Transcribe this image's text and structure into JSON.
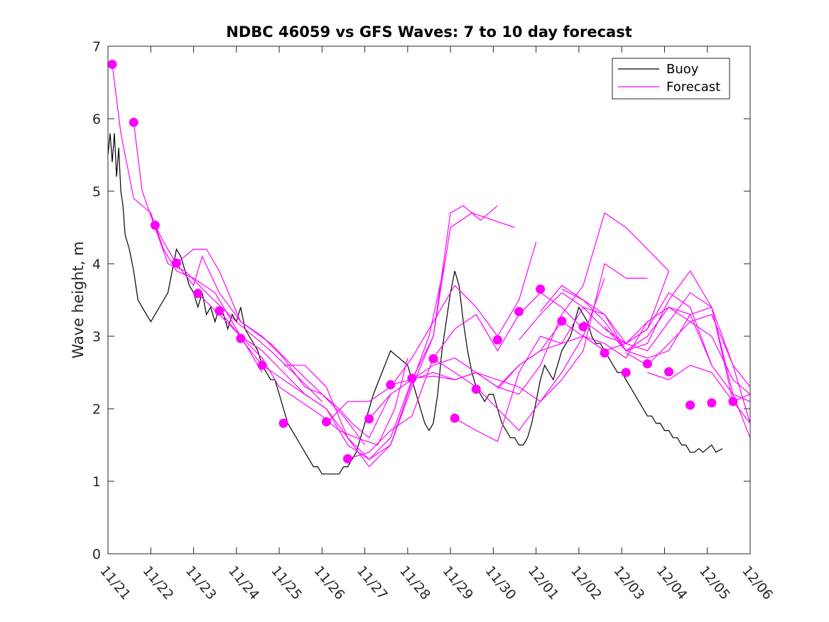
{
  "chart_data": {
    "type": "line",
    "title": "NDBC 46059 vs GFS Waves: 7 to 10 day forecast",
    "xlabel": "",
    "ylabel": "Wave height, m",
    "ylim": [
      0,
      7
    ],
    "yticks": [
      "0",
      "1",
      "2",
      "3",
      "4",
      "5",
      "6",
      "7"
    ],
    "xlim": [
      0,
      15
    ],
    "xticks": [
      "11/21",
      "11/22",
      "11/23",
      "11/24",
      "11/25",
      "11/26",
      "11/27",
      "11/28",
      "11/29",
      "11/30",
      "12/01",
      "12/02",
      "12/03",
      "12/04",
      "12/05",
      "12/06"
    ],
    "legend": {
      "position": "top-right",
      "entries": [
        "Buoy",
        "Forecast"
      ]
    },
    "colors": {
      "buoy": "#000000",
      "forecast": "#ff00ff",
      "axes": "#262626"
    },
    "buoy": {
      "name": "Buoy",
      "x": [
        0.0,
        0.05,
        0.1,
        0.15,
        0.2,
        0.25,
        0.3,
        0.35,
        0.4,
        0.5,
        0.6,
        0.7,
        0.8,
        0.9,
        1.0,
        1.1,
        1.2,
        1.3,
        1.4,
        1.5,
        1.6,
        1.7,
        1.8,
        1.9,
        2.0,
        2.1,
        2.2,
        2.3,
        2.4,
        2.5,
        2.6,
        2.7,
        2.8,
        2.9,
        3.0,
        3.1,
        3.2,
        3.3,
        3.4,
        3.5,
        3.6,
        3.7,
        3.8,
        3.9,
        4.0,
        4.1,
        4.2,
        4.3,
        4.4,
        4.5,
        4.6,
        4.7,
        4.8,
        4.9,
        5.0,
        5.1,
        5.2,
        5.3,
        5.4,
        5.5,
        5.6,
        5.7,
        5.8,
        5.9,
        6.0,
        6.2,
        6.4,
        6.6,
        6.8,
        7.0,
        7.1,
        7.2,
        7.3,
        7.4,
        7.5,
        7.6,
        7.7,
        7.8,
        7.9,
        8.0,
        8.1,
        8.2,
        8.3,
        8.4,
        8.5,
        8.6,
        8.7,
        8.8,
        8.9,
        9.0,
        9.1,
        9.2,
        9.3,
        9.4,
        9.5,
        9.6,
        9.7,
        9.8,
        9.9,
        10.0,
        10.1,
        10.2,
        10.3,
        10.4,
        10.5,
        10.6,
        10.7,
        10.8,
        10.9,
        11.0,
        11.1,
        11.2,
        11.3,
        11.4,
        11.5,
        11.6,
        11.7,
        11.8,
        11.9,
        12.0,
        12.1,
        12.2,
        12.3,
        12.4,
        12.5,
        12.6,
        12.7,
        12.8,
        12.9,
        13.0,
        13.1,
        13.2,
        13.3,
        13.4,
        13.5,
        13.6,
        13.7,
        13.8,
        13.9,
        14.0,
        14.1,
        14.2,
        14.35
      ],
      "y": [
        5.5,
        5.8,
        5.4,
        5.8,
        5.2,
        5.6,
        5.0,
        4.8,
        4.4,
        4.2,
        3.9,
        3.5,
        3.4,
        3.3,
        3.2,
        3.3,
        3.4,
        3.5,
        3.6,
        3.9,
        4.2,
        4.1,
        3.9,
        3.7,
        3.6,
        3.4,
        3.6,
        3.3,
        3.4,
        3.2,
        3.4,
        3.3,
        3.1,
        3.3,
        3.2,
        3.4,
        3.1,
        3.0,
        2.9,
        2.8,
        2.6,
        2.5,
        2.4,
        2.4,
        2.2,
        2.0,
        1.8,
        1.7,
        1.6,
        1.5,
        1.4,
        1.3,
        1.2,
        1.2,
        1.1,
        1.1,
        1.1,
        1.1,
        1.1,
        1.2,
        1.2,
        1.3,
        1.4,
        1.6,
        1.8,
        2.2,
        2.5,
        2.8,
        2.7,
        2.6,
        2.4,
        2.2,
        2.0,
        1.8,
        1.7,
        1.8,
        2.2,
        2.8,
        3.2,
        3.6,
        3.9,
        3.7,
        3.2,
        2.8,
        2.5,
        2.3,
        2.2,
        2.1,
        2.2,
        2.2,
        2.0,
        1.8,
        1.7,
        1.6,
        1.6,
        1.5,
        1.5,
        1.6,
        1.8,
        2.1,
        2.4,
        2.6,
        2.5,
        2.4,
        2.6,
        2.8,
        2.9,
        3.0,
        3.2,
        3.4,
        3.3,
        3.2,
        3.0,
        2.9,
        2.9,
        2.8,
        2.7,
        2.6,
        2.5,
        2.5,
        2.4,
        2.3,
        2.2,
        2.1,
        2.0,
        1.9,
        1.9,
        1.8,
        1.8,
        1.7,
        1.7,
        1.6,
        1.6,
        1.5,
        1.5,
        1.4,
        1.4,
        1.45,
        1.4,
        1.45,
        1.5,
        1.4,
        1.45
      ]
    },
    "forecast_points": {
      "name": "Forecast initial values",
      "x": [
        0.1,
        0.6,
        1.1,
        1.6,
        2.1,
        2.6,
        3.1,
        3.6,
        4.1,
        5.1,
        5.6,
        6.1,
        6.6,
        7.1,
        7.6,
        8.1,
        8.6,
        9.1,
        9.6,
        10.1,
        10.6,
        11.1,
        11.6,
        12.1,
        12.6,
        13.1,
        13.6,
        14.1,
        14.6
      ],
      "y": [
        6.75,
        5.95,
        4.53,
        4.01,
        3.59,
        3.35,
        2.97,
        2.6,
        1.8,
        1.82,
        1.31,
        1.86,
        2.33,
        2.42,
        2.69,
        1.87,
        2.27,
        2.95,
        3.34,
        3.65,
        3.21,
        3.13,
        2.77,
        2.5,
        2.62,
        2.51,
        2.05,
        2.08,
        2.1
      ]
    },
    "forecast_series": [
      {
        "x": [
          0.1,
          0.3,
          0.6,
          1.0,
          1.3,
          1.6,
          2.0,
          2.5,
          3.0,
          3.6
        ],
        "y": [
          6.75,
          5.8,
          4.9,
          4.7,
          4.2,
          3.9,
          3.8,
          3.6,
          3.1,
          2.5
        ]
      },
      {
        "x": [
          0.6,
          0.8,
          1.1,
          1.4,
          1.8,
          2.3,
          3.0,
          3.8,
          4.5,
          5.0
        ],
        "y": [
          5.95,
          5.0,
          4.5,
          4.0,
          3.9,
          3.6,
          3.2,
          2.8,
          2.4,
          2.1
        ]
      },
      {
        "x": [
          1.1,
          1.3,
          1.6,
          2.0,
          2.2,
          2.6,
          3.1,
          3.8,
          4.3,
          5.0,
          5.5,
          6.0
        ],
        "y": [
          4.53,
          4.3,
          4.0,
          3.7,
          4.1,
          3.6,
          3.2,
          2.9,
          2.6,
          2.2,
          1.9,
          1.5
        ]
      },
      {
        "x": [
          1.6,
          2.0,
          2.3,
          2.6,
          3.1,
          3.6,
          4.1,
          4.6,
          5.0,
          5.4,
          5.7,
          6.1,
          6.6
        ],
        "y": [
          4.01,
          4.2,
          4.2,
          3.9,
          3.2,
          3.0,
          2.7,
          2.3,
          2.2,
          2.0,
          1.8,
          1.6,
          2.2
        ]
      },
      {
        "x": [
          2.1,
          2.6,
          3.1,
          3.6,
          4.0,
          4.5,
          5.0,
          5.4,
          5.8,
          6.3,
          6.7,
          7.0
        ],
        "y": [
          3.59,
          3.3,
          3.0,
          2.7,
          2.3,
          2.1,
          1.9,
          1.7,
          1.6,
          1.5,
          2.0,
          2.7
        ]
      },
      {
        "x": [
          2.6,
          3.1,
          3.6,
          4.1,
          4.6,
          5.1,
          5.6,
          6.1,
          6.6,
          7.0,
          7.5,
          7.9
        ],
        "y": [
          3.35,
          3.0,
          2.8,
          2.5,
          2.2,
          2.0,
          1.6,
          1.3,
          1.5,
          2.2,
          3.0,
          4.1
        ]
      },
      {
        "x": [
          3.1,
          3.6,
          4.1,
          4.6,
          5.1,
          5.6,
          6.1,
          6.6,
          7.1,
          7.6,
          8.0,
          8.3,
          8.7,
          9.1
        ],
        "y": [
          2.97,
          2.6,
          2.4,
          2.2,
          2.0,
          1.5,
          1.3,
          1.6,
          2.4,
          3.0,
          4.7,
          4.8,
          4.6,
          4.8
        ]
      },
      {
        "x": [
          4.1,
          4.6,
          5.1,
          5.6,
          6.1,
          6.6,
          7.1,
          7.6,
          8.0,
          8.5,
          9.0,
          9.5
        ],
        "y": [
          2.6,
          2.6,
          2.3,
          1.6,
          1.2,
          1.5,
          2.3,
          3.0,
          4.5,
          4.7,
          4.6,
          4.5
        ]
      },
      {
        "x": [
          5.1,
          5.6,
          6.1,
          6.6,
          7.1,
          7.6,
          8.1,
          8.6,
          9.1,
          9.6,
          10.0
        ],
        "y": [
          1.8,
          2.1,
          2.1,
          2.3,
          2.7,
          3.2,
          3.7,
          3.4,
          3.0,
          3.5,
          4.3
        ]
      },
      {
        "x": [
          5.6,
          6.1,
          6.6,
          7.1,
          7.6,
          8.1,
          8.6,
          9.1,
          9.6,
          10.1,
          10.6,
          11.1
        ],
        "y": [
          1.31,
          1.4,
          1.7,
          1.9,
          2.7,
          3.1,
          3.3,
          2.8,
          3.3,
          3.6,
          3.4,
          3.1
        ]
      },
      {
        "x": [
          6.1,
          6.6,
          7.1,
          7.6,
          8.1,
          8.6,
          9.1,
          9.6,
          10.1,
          10.6,
          11.1,
          11.6
        ],
        "y": [
          1.86,
          2.2,
          2.4,
          2.5,
          2.4,
          2.5,
          2.3,
          2.6,
          2.8,
          2.9,
          3.0,
          3.8
        ]
      },
      {
        "x": [
          6.6,
          7.1,
          7.6,
          8.1,
          8.6,
          9.1,
          9.6,
          10.1,
          10.6,
          11.1,
          11.6,
          12.1,
          12.6,
          13.1
        ],
        "y": [
          2.33,
          2.4,
          2.6,
          2.7,
          2.5,
          2.3,
          2.2,
          2.6,
          3.3,
          3.7,
          4.7,
          4.5,
          4.2,
          3.9
        ]
      },
      {
        "x": [
          7.1,
          7.6,
          8.1,
          8.6,
          9.1,
          9.6,
          10.1,
          10.6,
          11.1,
          11.6,
          12.1,
          12.6
        ],
        "y": [
          2.42,
          2.45,
          2.4,
          2.5,
          2.4,
          2.3,
          2.1,
          2.4,
          2.8,
          4.0,
          3.8,
          3.8
        ]
      },
      {
        "x": [
          7.6,
          8.1,
          8.6,
          9.1,
          9.6,
          10.1,
          10.6,
          11.1,
          11.6,
          12.1,
          12.6
        ],
        "y": [
          2.69,
          2.5,
          2.3,
          2.0,
          1.7,
          2.1,
          2.5,
          3.0,
          2.8,
          2.9,
          3.2
        ]
      },
      {
        "x": [
          8.1,
          8.6,
          9.1,
          9.6,
          10.1,
          10.6,
          11.1,
          11.6,
          12.1,
          12.6,
          13.1
        ],
        "y": [
          1.87,
          1.7,
          1.55,
          2.5,
          3.0,
          2.9,
          3.4,
          3.3,
          2.9,
          3.1,
          3.9
        ]
      },
      {
        "x": [
          9.1,
          9.6,
          10.1,
          10.6,
          11.1,
          11.6,
          12.1,
          12.6,
          13.1,
          13.6,
          14.1
        ],
        "y": [
          2.27,
          2.6,
          2.8,
          3.2,
          3.0,
          2.9,
          2.7,
          3.2,
          3.4,
          3.3,
          2.6
        ]
      },
      {
        "x": [
          9.6,
          10.1,
          10.6,
          11.1,
          11.6,
          12.1,
          12.6,
          13.1,
          13.6,
          14.1,
          14.6,
          15.0
        ],
        "y": [
          2.95,
          3.3,
          3.6,
          3.4,
          3.1,
          2.9,
          3.1,
          3.6,
          3.4,
          2.6,
          2.2,
          2.1
        ]
      },
      {
        "x": [
          10.1,
          10.6,
          11.1,
          11.6,
          12.1,
          12.6,
          13.1,
          13.6,
          14.1,
          14.6,
          15.0
        ],
        "y": [
          3.34,
          3.7,
          3.5,
          3.2,
          2.8,
          3.0,
          3.4,
          3.2,
          3.3,
          2.6,
          2.3
        ]
      },
      {
        "x": [
          10.6,
          11.1,
          11.6,
          12.1,
          12.6,
          13.1,
          13.6,
          14.1,
          14.6,
          15.0
        ],
        "y": [
          3.65,
          3.5,
          3.3,
          2.8,
          2.9,
          3.5,
          3.9,
          3.4,
          2.6,
          1.8
        ]
      },
      {
        "x": [
          11.1,
          11.6,
          12.1,
          12.6,
          13.1,
          13.6,
          14.1,
          14.6,
          15.0
        ],
        "y": [
          3.21,
          3.0,
          2.9,
          2.8,
          3.2,
          3.6,
          3.4,
          2.2,
          1.6
        ]
      },
      {
        "x": [
          11.6,
          12.1,
          12.6,
          13.1,
          13.6,
          14.1,
          14.6,
          15.0
        ],
        "y": [
          3.13,
          2.8,
          2.7,
          2.8,
          3.3,
          3.4,
          2.1,
          1.8
        ]
      },
      {
        "x": [
          12.1,
          12.6,
          13.1,
          13.6,
          14.1,
          14.6,
          15.0
        ],
        "y": [
          2.77,
          2.6,
          2.9,
          3.2,
          3.0,
          2.4,
          2.2
        ]
      },
      {
        "x": [
          12.6,
          13.1,
          13.6,
          14.1,
          14.6,
          15.0
        ],
        "y": [
          2.5,
          2.4,
          2.6,
          2.5,
          2.1,
          2.2
        ]
      }
    ]
  }
}
